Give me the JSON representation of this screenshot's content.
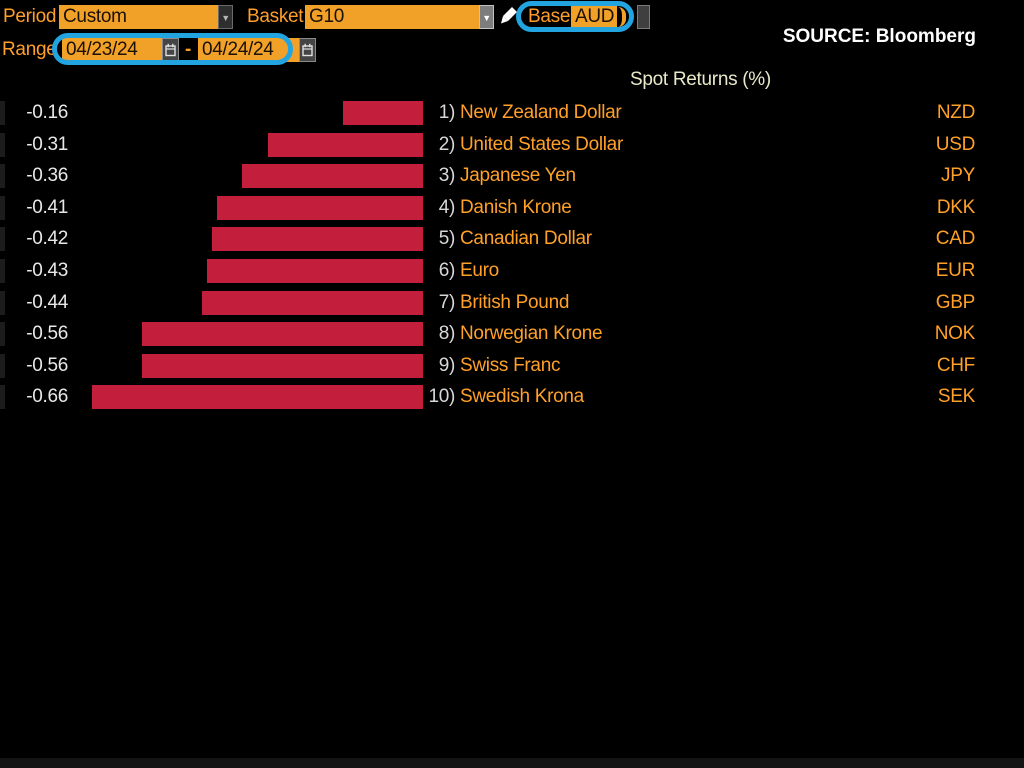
{
  "toolbar": {
    "period_label": "Period",
    "period_value": "Custom",
    "basket_label": "Basket",
    "basket_value": "G10",
    "base_label": "Base",
    "base_value": "AUD",
    "range_label": "Range",
    "range_start": "04/23/24",
    "range_separator": "-",
    "range_end": "04/24/24"
  },
  "source_text": "SOURCE: Bloomberg",
  "colors": {
    "accent_orange": "#F2A128",
    "label_orange": "#FF9E28",
    "bar_red": "#C41E3D",
    "highlight_blue": "#22A4E0",
    "value_white": "#E8E8E8",
    "title_yellow": "#E9E9C9"
  },
  "chart_data": {
    "type": "bar",
    "orientation": "horizontal",
    "title": "Spot Returns (%)",
    "categories": [
      "New Zealand Dollar",
      "United States Dollar",
      "Japanese Yen",
      "Danish Krone",
      "Canadian Dollar",
      "Euro",
      "British Pound",
      "Norwegian Krone",
      "Swiss Franc",
      "Swedish Krona"
    ],
    "codes": [
      "NZD",
      "USD",
      "JPY",
      "DKK",
      "CAD",
      "EUR",
      "GBP",
      "NOK",
      "CHF",
      "SEK"
    ],
    "rank_labels": [
      "1)",
      "2)",
      "3)",
      "4)",
      "5)",
      "6)",
      "7)",
      "8)",
      "9)",
      "10)"
    ],
    "values": [
      -0.16,
      -0.31,
      -0.36,
      -0.41,
      -0.42,
      -0.43,
      -0.44,
      -0.56,
      -0.56,
      -0.66
    ],
    "value_labels": [
      "-0.16",
      "-0.31",
      "-0.36",
      "-0.41",
      "-0.42",
      "-0.43",
      "-0.44",
      "-0.56",
      "-0.56",
      "-0.66"
    ],
    "bar_color": "#C41E3D",
    "xlim": [
      -0.7,
      0
    ],
    "grid": false,
    "legend": "none",
    "value_axis_label": "",
    "baseline": "right-edge zero"
  }
}
